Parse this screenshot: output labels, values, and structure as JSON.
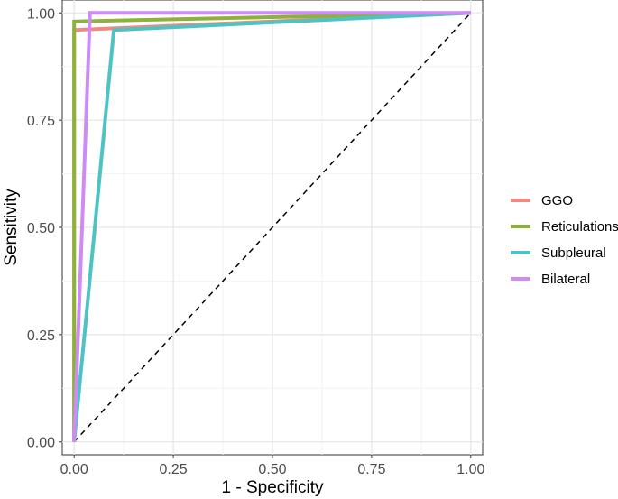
{
  "chart_data": {
    "type": "line",
    "xlabel": "1 - Specificity",
    "ylabel": "Sensitivity",
    "xlim": [
      -0.03,
      1.03
    ],
    "ylim": [
      -0.03,
      1.03
    ],
    "x_ticks": [
      0,
      0.25,
      0.5,
      0.75,
      1
    ],
    "x_tick_labels": [
      "0.00",
      "0.25",
      "0.50",
      "0.75",
      "1.00"
    ],
    "y_ticks": [
      0,
      0.25,
      0.5,
      0.75,
      1
    ],
    "y_tick_labels": [
      "0.00",
      "0.25",
      "0.50",
      "0.75",
      "1.00"
    ],
    "grid": true,
    "legend_position": "right",
    "series": [
      {
        "name": "GGO",
        "color": "#F08A80",
        "x": [
          0,
          0,
          1
        ],
        "y": [
          0,
          0.96,
          1
        ]
      },
      {
        "name": "Reticulations",
        "color": "#8CB23A",
        "x": [
          0,
          0,
          1
        ],
        "y": [
          0,
          0.98,
          1
        ]
      },
      {
        "name": "Subpleural",
        "color": "#4EC3C3",
        "x": [
          0,
          0.1,
          1
        ],
        "y": [
          0,
          0.96,
          1
        ]
      },
      {
        "name": "Bilateral",
        "color": "#CC8BF5",
        "x": [
          0,
          0.04,
          1
        ],
        "y": [
          0,
          1,
          1
        ]
      }
    ],
    "reference_line": {
      "x": [
        0,
        1
      ],
      "y": [
        0,
        1
      ],
      "style": "dashed",
      "color": "#000000"
    }
  }
}
